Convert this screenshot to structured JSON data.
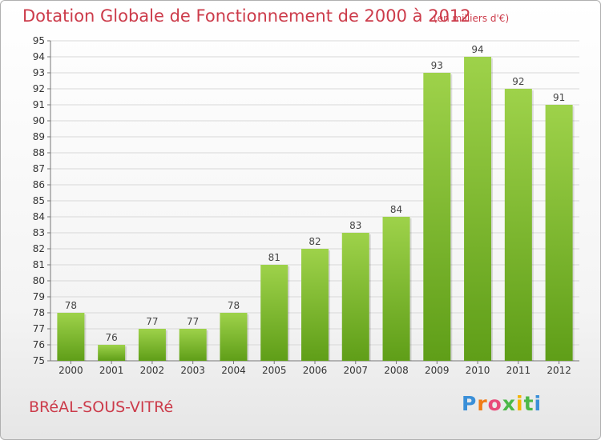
{
  "header": {
    "title": "Dotation Globale de Fonctionnement de 2000 à 2012",
    "subtitle": "(en milliers d'€)"
  },
  "footer": {
    "city": "BRéAL-SOUS-VITRé",
    "logo_letters": [
      "P",
      "r",
      "o",
      "x",
      "i",
      "t",
      "i"
    ]
  },
  "colors": {
    "title": "#cc3b4a",
    "bar_top": "#9ed24a",
    "bar_bottom": "#5f9e18",
    "grid": "#d8d8d8"
  },
  "chart_data": {
    "type": "bar",
    "categories": [
      "2000",
      "2001",
      "2002",
      "2003",
      "2004",
      "2005",
      "2006",
      "2007",
      "2008",
      "2009",
      "2010",
      "2011",
      "2012"
    ],
    "values": [
      78,
      76,
      77,
      77,
      78,
      81,
      82,
      83,
      84,
      93,
      94,
      92,
      91
    ],
    "ylim": [
      75,
      95
    ],
    "yticks": [
      75,
      76,
      77,
      78,
      79,
      80,
      81,
      82,
      83,
      84,
      85,
      86,
      87,
      88,
      89,
      90,
      91,
      92,
      93,
      94,
      95
    ],
    "grid": true,
    "data_labels": true
  }
}
